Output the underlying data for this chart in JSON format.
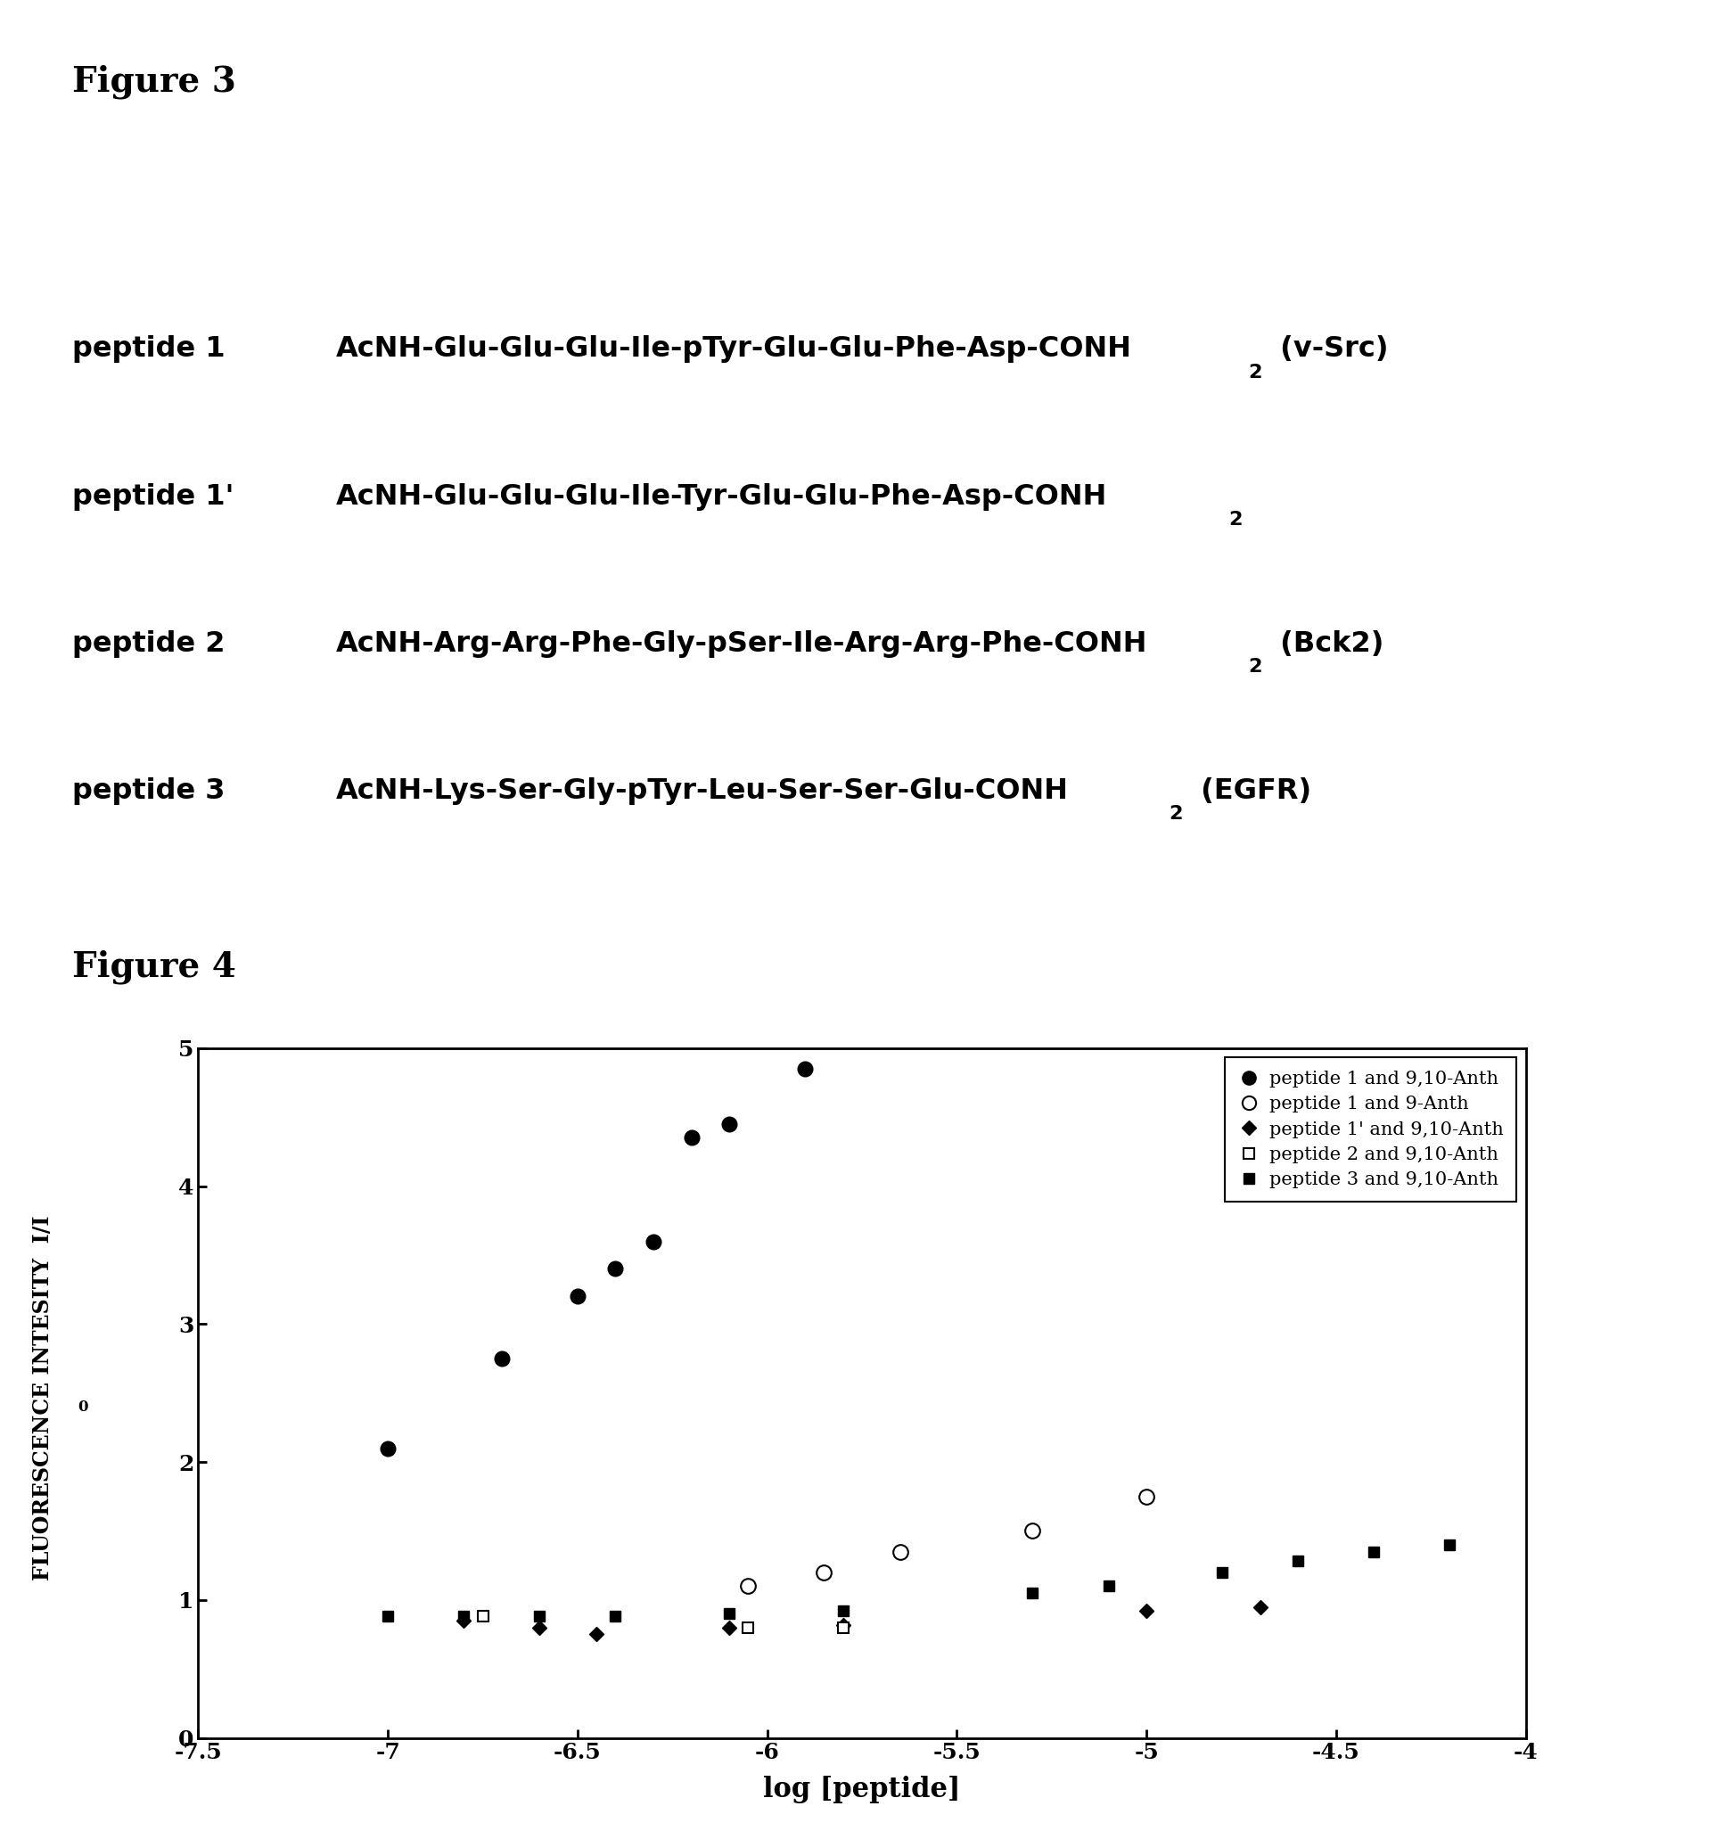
{
  "fig3_title": "Figure 3",
  "fig4_title": "Figure 4",
  "peptide_labels": [
    "peptide 1",
    "peptide 1’",
    "peptide 2",
    "peptide 3"
  ],
  "peptide_labels_raw": [
    "peptide 1",
    "peptide 1'",
    "peptide 2",
    "peptide 3"
  ],
  "peptide_seqs_main": [
    "AcNH-Glu-Glu-Glu-Ile-pTyr-Glu-Glu-Phe-Asp-CONH",
    "AcNH-Glu-Glu-Glu-Ile-Tyr-Glu-Glu-Phe-Asp-CONH",
    "AcNH-Arg-Arg-Phe-Gly-pSer-Ile-Arg-Arg-Phe-CONH",
    "AcNH-Lys-Ser-Gly-pTyr-Leu-Ser-Ser-Glu-CONH"
  ],
  "peptide_seqs_suffix": [
    " (v-Src)",
    "",
    " (Bck2)",
    " (EGFR)"
  ],
  "series": {
    "peptide1_9_10_Anth": {
      "label": "peptide 1 and 9,10-Anth",
      "x": [
        -7.0,
        -6.7,
        -6.5,
        -6.4,
        -6.3,
        -6.2,
        -6.1,
        -5.9
      ],
      "y": [
        2.1,
        2.75,
        3.2,
        3.4,
        3.6,
        4.35,
        4.45,
        4.85
      ]
    },
    "peptide1_9_Anth": {
      "label": "peptide 1 and 9-Anth",
      "x": [
        -6.05,
        -5.85,
        -5.65,
        -5.3,
        -5.0
      ],
      "y": [
        1.1,
        1.2,
        1.35,
        1.5,
        1.75
      ]
    },
    "peptide1p_9_10_Anth": {
      "label": "peptide 1' and 9,10-Anth",
      "x": [
        -6.8,
        -6.6,
        -6.45,
        -6.1,
        -5.8,
        -5.0,
        -4.7
      ],
      "y": [
        0.85,
        0.8,
        0.75,
        0.8,
        0.82,
        0.92,
        0.95
      ]
    },
    "peptide2_9_10_Anth": {
      "label": "peptide 2 and 9,10-Anth",
      "x": [
        -6.75,
        -6.05,
        -5.8
      ],
      "y": [
        0.88,
        0.8,
        0.8
      ]
    },
    "peptide3_9_10_Anth": {
      "label": "peptide 3 and 9,10-Anth",
      "x": [
        -7.0,
        -6.8,
        -6.6,
        -6.4,
        -6.1,
        -5.8,
        -5.3,
        -5.1,
        -4.8,
        -4.6,
        -4.4,
        -4.2
      ],
      "y": [
        0.88,
        0.88,
        0.88,
        0.88,
        0.9,
        0.92,
        1.05,
        1.1,
        1.2,
        1.28,
        1.35,
        1.4
      ]
    }
  },
  "xlabel": "log [peptide]",
  "ylabel": "FLUORESCENCE INTESITY  I/I",
  "xlim": [
    -7.5,
    -4.0
  ],
  "ylim": [
    0,
    5
  ],
  "xticks": [
    -7.5,
    -7.0,
    -6.5,
    -6.0,
    -5.5,
    -5.0,
    -4.5,
    -4.0
  ],
  "xtick_labels": [
    "-7.5",
    "-7",
    "-6.5",
    "-6",
    "-5.5",
    "-5",
    "-4.5",
    "-4"
  ],
  "yticks": [
    0,
    1,
    2,
    3,
    4,
    5
  ],
  "background_color": "#ffffff"
}
